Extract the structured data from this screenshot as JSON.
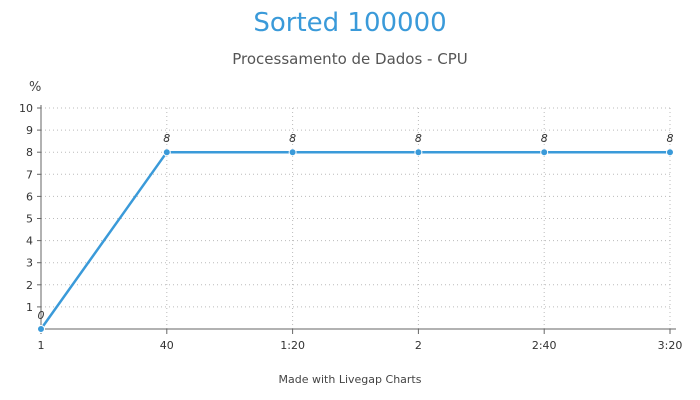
{
  "chart_data": {
    "type": "line",
    "title": "Sorted 100000",
    "subtitle": "Processamento de Dados - CPU",
    "ylabel": "%",
    "xlabel": "",
    "categories": [
      "1",
      "40",
      "1:20",
      "2",
      "2:40",
      "3:20"
    ],
    "series": [
      {
        "values": [
          0,
          8,
          8,
          8,
          8,
          8
        ]
      }
    ],
    "data_labels": [
      "0",
      "8",
      "8",
      "8",
      "8",
      "8"
    ],
    "ylim": [
      0,
      10
    ],
    "yticks": [
      "1",
      "2",
      "3",
      "4",
      "5",
      "6",
      "7",
      "8",
      "9",
      "10"
    ],
    "grid": true,
    "line_color": "#3a9ad9"
  },
  "credit": "Made with Livegap Charts"
}
